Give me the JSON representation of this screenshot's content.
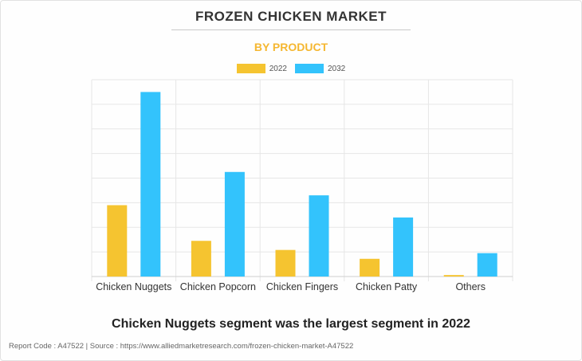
{
  "header": {
    "title": "FROZEN CHICKEN MARKET",
    "subtitle": "BY PRODUCT"
  },
  "chart_data": {
    "type": "bar",
    "categories": [
      "Chicken Nuggets",
      "Chicken Popcorn",
      "Chicken Fingers",
      "Chicken Patty",
      "Others"
    ],
    "series": [
      {
        "name": "2022",
        "color": "#f5c430",
        "values": [
          2.9,
          1.45,
          1.08,
          0.72,
          0.06
        ]
      },
      {
        "name": "2032",
        "color": "#33c3fc",
        "values": [
          7.5,
          4.25,
          3.3,
          2.4,
          0.95
        ]
      }
    ],
    "ylim": [
      0,
      8
    ],
    "grid": true,
    "legend": "top-center"
  },
  "headline": "Chicken Nuggets segment was the largest segment in 2022",
  "footer": "Report Code : A47522  |  Source : https://www.alliedmarketresearch.com/frozen-chicken-market-A47522"
}
